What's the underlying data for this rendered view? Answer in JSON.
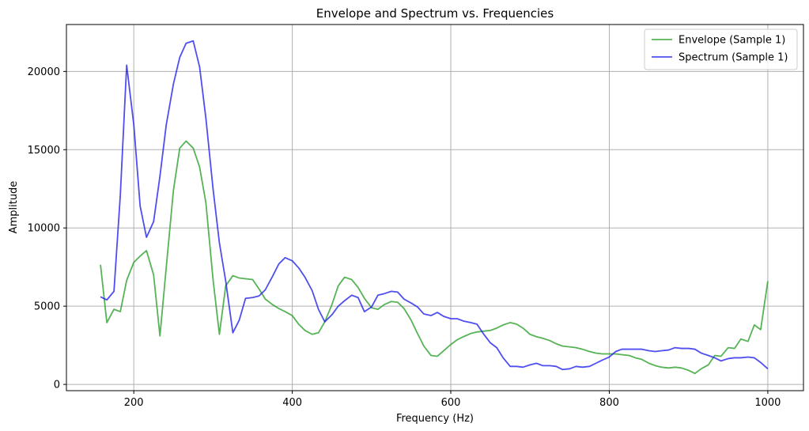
{
  "chart_data": {
    "type": "line",
    "title": "Envelope and Spectrum vs. Frequencies",
    "xlabel": "Frequency (Hz)",
    "ylabel": "Amplitude",
    "xlim": [
      115,
      1045
    ],
    "ylim": [
      -400,
      23000
    ],
    "xticks": [
      200,
      400,
      600,
      800,
      1000
    ],
    "yticks": [
      0,
      5000,
      10000,
      15000,
      20000
    ],
    "grid": true,
    "legend_position": "top-right",
    "x": [
      158,
      166,
      175,
      183,
      191,
      200,
      208,
      216,
      225,
      233,
      241,
      250,
      258,
      266,
      275,
      283,
      291,
      300,
      308,
      316,
      325,
      333,
      341,
      350,
      358,
      366,
      375,
      383,
      391,
      400,
      408,
      416,
      425,
      433,
      441,
      450,
      458,
      466,
      475,
      483,
      491,
      500,
      508,
      516,
      525,
      533,
      541,
      550,
      558,
      566,
      575,
      583,
      591,
      600,
      608,
      616,
      625,
      633,
      641,
      650,
      658,
      666,
      675,
      683,
      691,
      700,
      708,
      716,
      725,
      733,
      741,
      750,
      758,
      766,
      775,
      783,
      791,
      800,
      808,
      816,
      825,
      833,
      841,
      850,
      858,
      866,
      875,
      883,
      891,
      900,
      908,
      916,
      925,
      933,
      941,
      950,
      958,
      966,
      975,
      983,
      991,
      1000
    ],
    "series": [
      {
        "name": "Envelope (Sample 1)",
        "color": "#2ca02c",
        "values": [
          7650,
          3950,
          4800,
          4650,
          6650,
          7800,
          8200,
          8550,
          7000,
          3100,
          7500,
          12400,
          15100,
          15550,
          15100,
          13900,
          11600,
          6700,
          3200,
          6300,
          6950,
          6800,
          6750,
          6700,
          6100,
          5450,
          5100,
          4850,
          4650,
          4400,
          3850,
          3450,
          3200,
          3300,
          4000,
          5100,
          6300,
          6850,
          6700,
          6200,
          5500,
          4900,
          4800,
          5100,
          5300,
          5250,
          4850,
          4100,
          3250,
          2450,
          1850,
          1800,
          2150,
          2550,
          2850,
          3050,
          3250,
          3350,
          3400,
          3450,
          3600,
          3800,
          3950,
          3850,
          3600,
          3200,
          3050,
          2950,
          2800,
          2600,
          2450,
          2400,
          2350,
          2250,
          2100,
          2000,
          1950,
          1950,
          1950,
          1900,
          1850,
          1700,
          1600,
          1350,
          1200,
          1100,
          1050,
          1100,
          1050,
          900,
          700,
          1000,
          1250,
          1850,
          1800,
          2350,
          2300,
          2900,
          2750,
          3800,
          3500,
          6600
        ]
      },
      {
        "name": "Spectrum (Sample 1)",
        "color": "#2222ee",
        "values": [
          5600,
          5400,
          5950,
          12100,
          20400,
          16600,
          11400,
          9400,
          10400,
          13300,
          16600,
          19200,
          20900,
          21800,
          21950,
          20300,
          17000,
          12500,
          9050,
          6600,
          3300,
          4100,
          5500,
          5550,
          5650,
          6050,
          6900,
          7700,
          8100,
          7900,
          7450,
          6850,
          6000,
          4800,
          4000,
          4450,
          5000,
          5350,
          5700,
          5550,
          4650,
          4950,
          5700,
          5800,
          5950,
          5900,
          5450,
          5200,
          4950,
          4500,
          4400,
          4600,
          4350,
          4200,
          4200,
          4050,
          3950,
          3850,
          3250,
          2650,
          2350,
          1700,
          1150,
          1150,
          1100,
          1250,
          1350,
          1200,
          1200,
          1150,
          950,
          1000,
          1150,
          1100,
          1150,
          1350,
          1550,
          1750,
          2100,
          2250,
          2250,
          2250,
          2250,
          2150,
          2100,
          2150,
          2200,
          2350,
          2300,
          2300,
          2250,
          2000,
          1850,
          1700,
          1500,
          1650,
          1700,
          1700,
          1750,
          1700,
          1400,
          1000
        ]
      }
    ]
  }
}
